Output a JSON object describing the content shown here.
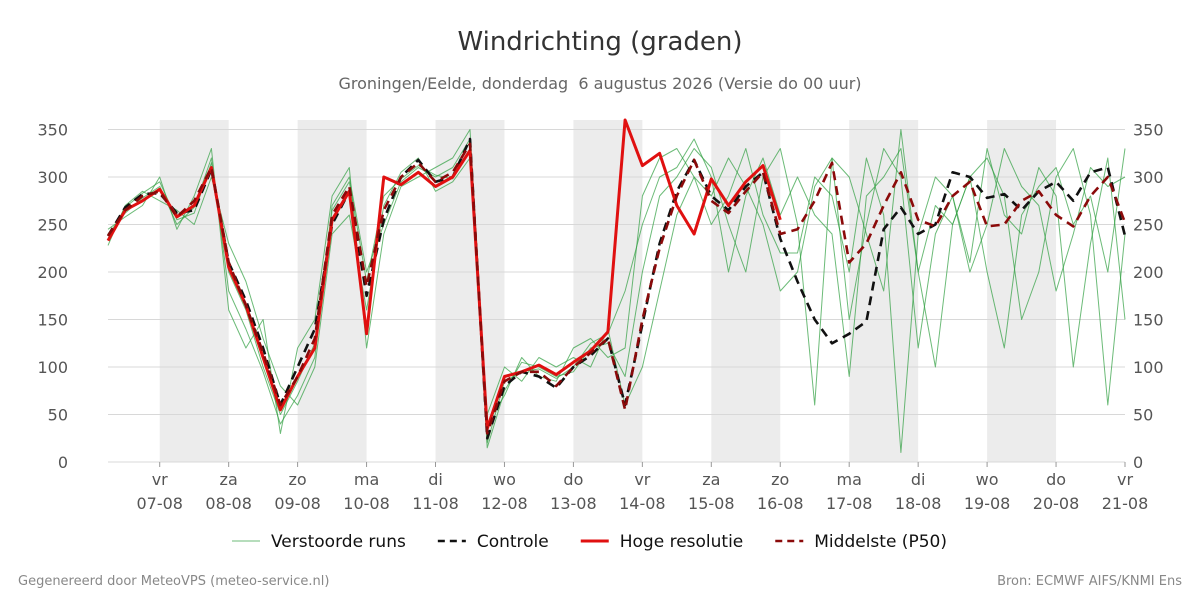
{
  "chart_data": {
    "type": "line",
    "title": "Windrichting (graden)",
    "subtitle": "Groningen/Eelde, donderdag  6 augustus 2026 (Versie do 00 uur)",
    "footer_left": "Gegenereerd door MeteoVPS (meteo-service.nl)",
    "footer_right": "Bron: ECMWF AIFS/KNMI Ens",
    "x": [
      6.25,
      6.5,
      6.75,
      7,
      7.25,
      7.5,
      7.75,
      8,
      8.25,
      8.5,
      8.75,
      9,
      9.25,
      9.5,
      9.75,
      10,
      10.25,
      10.5,
      10.75,
      11,
      11.25,
      11.5,
      11.75,
      12,
      12.25,
      12.5,
      12.75,
      13,
      13.25,
      13.5,
      13.75,
      14,
      14.25,
      14.5,
      14.75,
      15,
      15.25,
      15.5,
      15.75,
      16,
      16.25,
      16.5,
      16.75,
      17,
      17.25,
      17.5,
      17.75,
      18,
      18.25,
      18.5,
      18.75,
      19,
      19.25,
      19.5,
      19.75,
      20,
      20.25,
      20.5,
      20.75,
      21
    ],
    "xlim": [
      6.25,
      21
    ],
    "xticks": [
      {
        "value": 7,
        "label": "vr\n07-08"
      },
      {
        "value": 8,
        "label": "za\n08-08"
      },
      {
        "value": 9,
        "label": "zo\n09-08"
      },
      {
        "value": 10,
        "label": "ma\n10-08"
      },
      {
        "value": 11,
        "label": "di\n11-08"
      },
      {
        "value": 12,
        "label": "wo\n12-08"
      },
      {
        "value": 13,
        "label": "do\n13-08"
      },
      {
        "value": 14,
        "label": "vr\n14-08"
      },
      {
        "value": 15,
        "label": "za\n15-08"
      },
      {
        "value": 16,
        "label": "zo\n16-08"
      },
      {
        "value": 17,
        "label": "ma\n17-08"
      },
      {
        "value": 18,
        "label": "di\n18-08"
      },
      {
        "value": 19,
        "label": "wo\n19-08"
      },
      {
        "value": 20,
        "label": "do\n20-08"
      },
      {
        "value": 21,
        "label": "vr\n21-08"
      }
    ],
    "ylim": [
      0,
      360
    ],
    "yticks": [
      0,
      50,
      100,
      150,
      200,
      250,
      300,
      350
    ],
    "grid": true,
    "shaded": [
      [
        7,
        8
      ],
      [
        9,
        10
      ],
      [
        11,
        12
      ],
      [
        13,
        14
      ],
      [
        15,
        16
      ],
      [
        17,
        18
      ],
      [
        19,
        20
      ]
    ],
    "legend": "bottom",
    "series": [
      {
        "name": "Verstoorde runs",
        "color": "#2e9e3e",
        "style": "thin",
        "values": [
          240,
          262,
          278,
          290,
          250,
          268,
          320,
          180,
          140,
          95,
          40,
          70,
          110,
          270,
          300,
          200,
          250,
          295,
          310,
          300,
          310,
          340,
          15,
          75,
          105,
          100,
          90,
          95,
          120,
          125,
          90,
          200,
          280,
          300,
          330,
          310,
          250,
          200,
          300,
          330,
          250,
          60,
          320,
          300,
          240,
          180,
          350,
          200,
          100,
          250,
          300,
          320,
          280,
          150,
          200,
          300,
          330,
          260,
          60,
          240
        ]
      },
      {
        "name": "Verstoorde runs",
        "color": "#2e9e3e",
        "style": "thin",
        "values": [
          228,
          270,
          285,
          275,
          265,
          250,
          300,
          230,
          190,
          130,
          80,
          60,
          100,
          240,
          260,
          160,
          270,
          305,
          320,
          285,
          295,
          320,
          50,
          100,
          85,
          110,
          100,
          110,
          100,
          140,
          60,
          100,
          180,
          260,
          300,
          250,
          280,
          330,
          260,
          220,
          220,
          300,
          280,
          200,
          320,
          260,
          10,
          240,
          300,
          280,
          200,
          250,
          330,
          290,
          270,
          180,
          240,
          310,
          290,
          300
        ]
      },
      {
        "name": "Verstoorde runs",
        "color": "#2e9e3e",
        "style": "thin",
        "values": [
          245,
          258,
          270,
          300,
          245,
          280,
          330,
          160,
          120,
          150,
          30,
          120,
          150,
          280,
          310,
          120,
          240,
          290,
          300,
          310,
          320,
          350,
          40,
          70,
          110,
          90,
          85,
          120,
          130,
          110,
          120,
          280,
          320,
          330,
          300,
          280,
          320,
          290,
          250,
          180,
          200,
          290,
          320,
          150,
          250,
          330,
          300,
          120,
          240,
          280,
          210,
          330,
          260,
          240,
          310,
          280,
          100,
          230,
          320,
          150
        ]
      },
      {
        "name": "Verstoorde runs",
        "color": "#2e9e3e",
        "style": "thin",
        "values": [
          235,
          268,
          283,
          295,
          255,
          262,
          315,
          200,
          160,
          100,
          50,
          85,
          125,
          265,
          295,
          190,
          280,
          298,
          312,
          302,
          298,
          330,
          20,
          85,
          95,
          98,
          88,
          100,
          125,
          135,
          180,
          250,
          300,
          310,
          340,
          300,
          200,
          280,
          320,
          260,
          300,
          260,
          240,
          90,
          280,
          300,
          330,
          200,
          270,
          250,
          300,
          200,
          120,
          260,
          290,
          310,
          250,
          280,
          200,
          330
        ]
      },
      {
        "name": "Controle",
        "color": "#111111",
        "style": "dashed",
        "values": [
          238,
          268,
          282,
          283,
          262,
          265,
          308,
          210,
          170,
          120,
          60,
          100,
          140,
          250,
          285,
          175,
          255,
          300,
          318,
          295,
          300,
          340,
          25,
          80,
          95,
          90,
          78,
          100,
          112,
          130,
          60,
          145,
          230,
          285,
          318,
          280,
          265,
          290,
          305,
          235,
          190,
          150,
          125,
          135,
          148,
          245,
          268,
          240,
          250,
          305,
          300,
          278,
          282,
          265,
          285,
          295,
          275,
          305,
          310,
          238
        ]
      },
      {
        "name": "Hoge resolutie",
        "color": "#e01010",
        "style": "thick",
        "values": [
          233,
          265,
          275,
          287,
          258,
          270,
          310,
          205,
          165,
          110,
          55,
          90,
          120,
          255,
          285,
          135,
          300,
          292,
          305,
          290,
          300,
          328,
          35,
          90,
          95,
          102,
          92,
          105,
          117,
          137,
          360,
          312,
          325,
          270,
          240,
          298,
          270,
          295,
          312,
          255,
          null,
          null,
          null,
          null,
          null,
          null,
          null,
          null,
          null,
          null,
          null,
          null,
          null,
          null,
          null,
          null,
          null,
          null,
          null,
          null
        ]
      },
      {
        "name": "Middelste (P50)",
        "color": "#8b0a0a",
        "style": "dashed",
        "values": [
          238,
          265,
          280,
          285,
          258,
          275,
          310,
          210,
          165,
          115,
          60,
          90,
          130,
          260,
          290,
          185,
          265,
          300,
          315,
          295,
          305,
          335,
          30,
          85,
          95,
          95,
          80,
          100,
          115,
          130,
          55,
          150,
          225,
          280,
          318,
          275,
          262,
          285,
          305,
          240,
          245,
          275,
          315,
          210,
          230,
          270,
          305,
          255,
          248,
          280,
          295,
          248,
          250,
          275,
          285,
          260,
          248,
          280,
          300,
          252
        ]
      }
    ]
  }
}
